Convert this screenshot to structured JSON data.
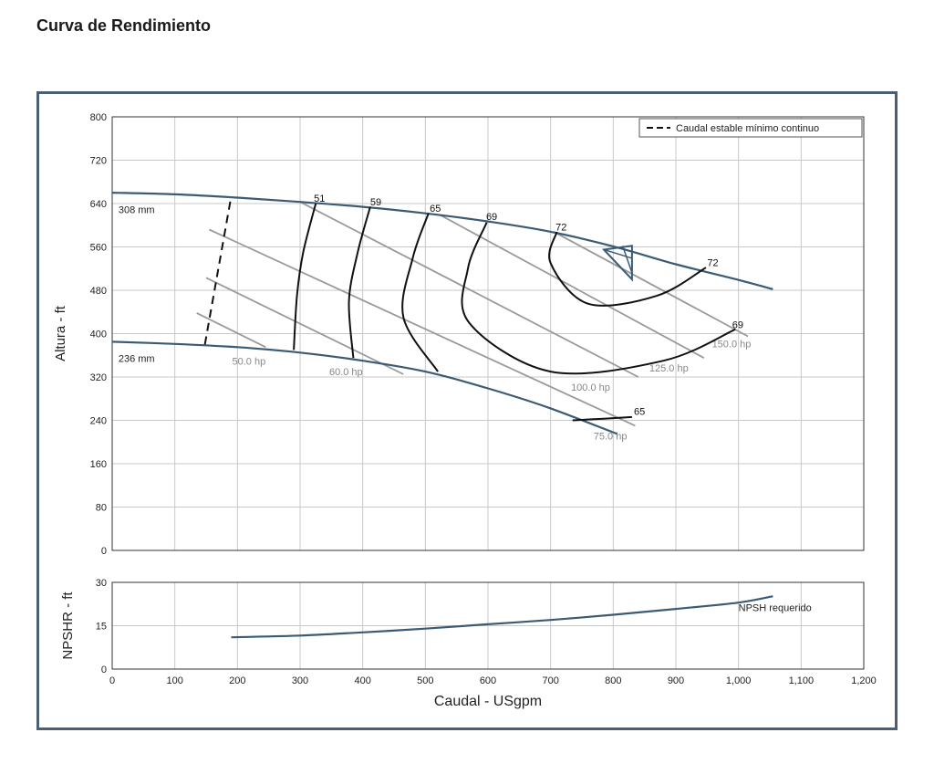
{
  "page": {
    "title": "Curva de Rendimiento"
  },
  "colors": {
    "frame": "#4a5f73",
    "curve": "#3b5b74",
    "grid": "#c8c8c8",
    "eff": "#111111",
    "power": "#9a9a9a",
    "power_text": "#888888"
  },
  "chart_data": [
    {
      "type": "line",
      "title": "Curva de Rendimiento",
      "xlabel": "",
      "ylabel": "Altura - ft",
      "xlim": [
        0,
        1200
      ],
      "ylim": [
        0,
        800
      ],
      "yticks": [
        0,
        80,
        160,
        240,
        320,
        400,
        480,
        560,
        640,
        720,
        800
      ],
      "ytick_labels": [
        "0",
        "80",
        "160",
        "240",
        "320",
        "400",
        "480",
        "560",
        "640",
        "720",
        "800"
      ],
      "legend": {
        "label": "Caudal estable mínimo continuo",
        "placement": "top-right"
      },
      "impeller_curves": [
        {
          "name": "308 mm",
          "x": [
            0,
            100,
            200,
            300,
            400,
            500,
            600,
            700,
            800,
            900,
            1000,
            1055
          ],
          "y": [
            660,
            657,
            651,
            643,
            634,
            622,
            607,
            588,
            561,
            528,
            499,
            482
          ]
        },
        {
          "name": "236 mm",
          "x": [
            0,
            100,
            200,
            300,
            400,
            500,
            600,
            700,
            806
          ],
          "y": [
            385,
            381,
            375,
            365,
            350,
            330,
            299,
            262,
            215
          ]
        }
      ],
      "min_flow_line": {
        "x": [
          148,
          190
        ],
        "y": [
          380,
          653
        ]
      },
      "power_lines": [
        {
          "label": "50.0 hp",
          "x": [
            135,
            245
          ],
          "y": [
            438,
            375
          ]
        },
        {
          "label": "60.0 hp",
          "x": [
            150,
            465
          ],
          "y": [
            503,
            325
          ]
        },
        {
          "label": "75.0 hp",
          "x": [
            155,
            835
          ],
          "y": [
            592,
            230
          ]
        },
        {
          "label": "100.0 hp",
          "x": [
            300,
            840
          ],
          "y": [
            643,
            320
          ]
        },
        {
          "label": "125.0 hp",
          "x": [
            525,
            945
          ],
          "y": [
            618,
            355
          ]
        },
        {
          "label": "150.0 hp",
          "x": [
            705,
            1015
          ],
          "y": [
            588,
            395
          ]
        }
      ],
      "efficiency_curves": [
        {
          "label": "51",
          "points": [
            [
              325,
              640
            ],
            [
              305,
              550
            ],
            [
              295,
              470
            ],
            [
              290,
              370
            ]
          ]
        },
        {
          "label": "59",
          "points": [
            [
              412,
              634
            ],
            [
              392,
              550
            ],
            [
              378,
              460
            ],
            [
              385,
              355
            ]
          ]
        },
        {
          "label": "65",
          "points": [
            [
              505,
              622
            ],
            [
              480,
              540
            ],
            [
              465,
              430
            ],
            [
              520,
              330
            ]
          ]
        },
        {
          "label": "65",
          "points": [
            [
              735,
              240
            ],
            [
              785,
              243
            ],
            [
              830,
              246
            ]
          ]
        },
        {
          "label": "69",
          "points": [
            [
              598,
              605
            ],
            [
              568,
              520
            ],
            [
              570,
              420
            ],
            [
              700,
              330
            ],
            [
              880,
              350
            ],
            [
              995,
              408
            ]
          ]
        },
        {
          "label": "72",
          "points": [
            [
              710,
              588
            ],
            [
              700,
              530
            ],
            [
              760,
              455
            ],
            [
              870,
              470
            ],
            [
              948,
              522
            ]
          ]
        }
      ],
      "bep": {
        "x": [
          785,
          830,
          830
        ],
        "y": [
          555,
          562,
          500
        ]
      },
      "eff_labels": [
        {
          "text": "51",
          "x": 322,
          "y": 643
        },
        {
          "text": "59",
          "x": 412,
          "y": 637
        },
        {
          "text": "65",
          "x": 507,
          "y": 625
        },
        {
          "text": "69",
          "x": 597,
          "y": 610
        },
        {
          "text": "72",
          "x": 708,
          "y": 590
        },
        {
          "text": "72",
          "x": 950,
          "y": 525
        },
        {
          "text": "69",
          "x": 990,
          "y": 410
        },
        {
          "text": "65",
          "x": 833,
          "y": 250
        }
      ],
      "power_labels": [
        {
          "text": "50.0 hp",
          "x": 245,
          "y": 343
        },
        {
          "text": "60.0 hp",
          "x": 400,
          "y": 323
        },
        {
          "text": "100.0 hp",
          "x": 795,
          "y": 295
        },
        {
          "text": "125.0 hp",
          "x": 920,
          "y": 330
        },
        {
          "text": "150.0 hp",
          "x": 1020,
          "y": 375
        },
        {
          "text": "75.0 hp",
          "x": 822,
          "y": 205
        }
      ],
      "curve_labels": [
        {
          "text": "308 mm",
          "x": 10,
          "y": 622
        },
        {
          "text": "236 mm",
          "x": 10,
          "y": 348
        }
      ]
    },
    {
      "type": "line",
      "xlabel": "Caudal - USgpm",
      "ylabel": "NPSHR - ft",
      "xlim": [
        0,
        1200
      ],
      "ylim": [
        0,
        30
      ],
      "xticks": [
        0,
        100,
        200,
        300,
        400,
        500,
        600,
        700,
        800,
        900,
        1000,
        1100,
        1200
      ],
      "xtick_labels": [
        "0",
        "100",
        "200",
        "300",
        "400",
        "500",
        "600",
        "700",
        "800",
        "900",
        "1,000",
        "1,100",
        "1,200"
      ],
      "yticks": [
        0,
        15,
        30
      ],
      "ytick_labels": [
        "0",
        "15",
        "30"
      ],
      "series": [
        {
          "name": "NPSH requerido",
          "x": [
            190,
            300,
            400,
            500,
            600,
            700,
            800,
            900,
            1000,
            1055
          ],
          "y": [
            11.0,
            11.6,
            12.7,
            14.0,
            15.5,
            17.0,
            18.8,
            20.8,
            23.0,
            25.2
          ]
        }
      ],
      "label": {
        "text": "NPSH requerido",
        "x": 1000,
        "y": 20
      }
    }
  ]
}
